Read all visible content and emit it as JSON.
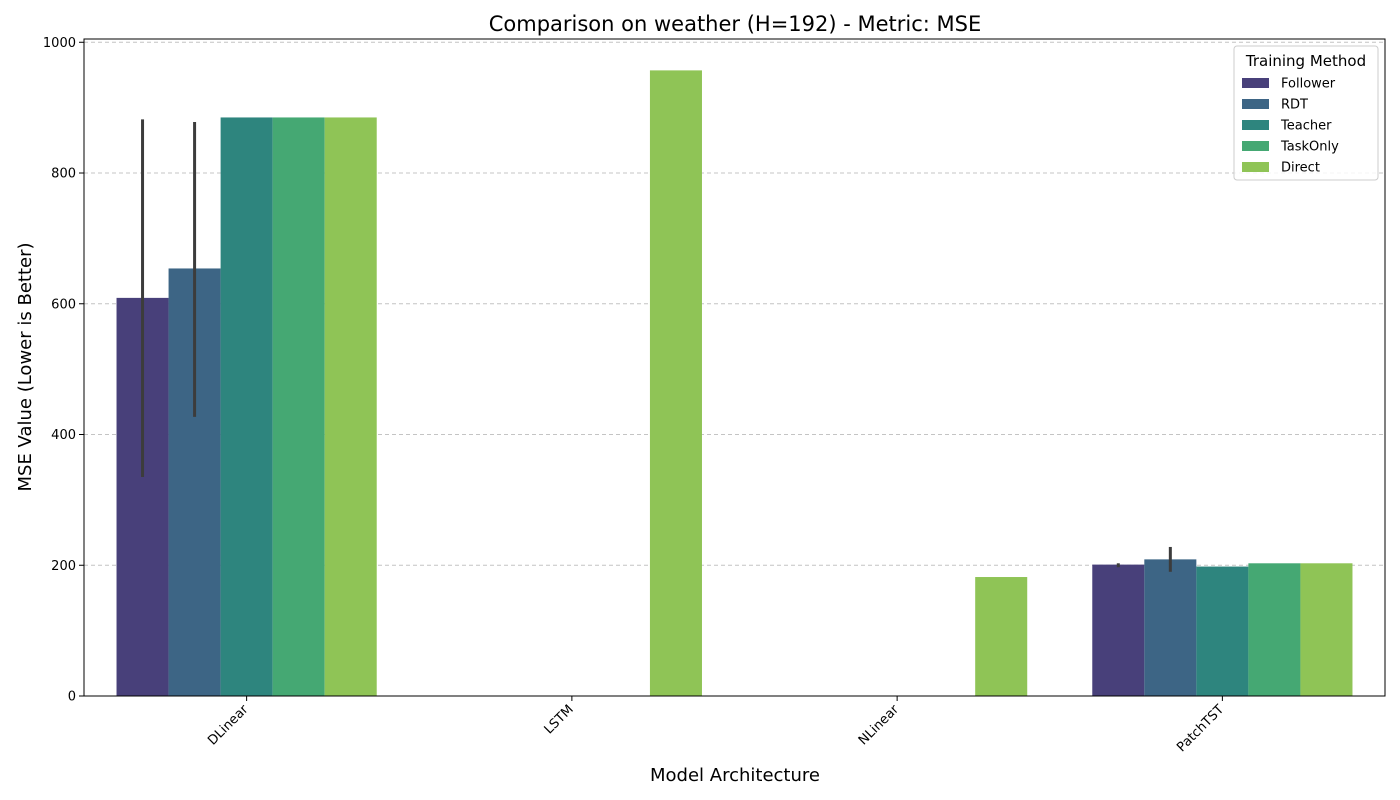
{
  "chart_data": {
    "type": "bar",
    "title": "Comparison on weather (H=192) - Metric: MSE",
    "xlabel": "Model Architecture",
    "ylabel": "MSE Value (Lower is Better)",
    "ylim": [
      0,
      1005
    ],
    "yticks": [
      0,
      200,
      400,
      600,
      800,
      1000
    ],
    "grid": "y, dashed",
    "categories": [
      "DLinear",
      "LSTM",
      "NLinear",
      "PatchTST"
    ],
    "series": [
      {
        "name": "Follower",
        "color": "#48407a",
        "values": [
          609,
          null,
          null,
          201
        ],
        "error": [
          [
            335,
            882
          ],
          null,
          null,
          [
            197,
            203
          ]
        ]
      },
      {
        "name": "RDT",
        "color": "#3d6585",
        "values": [
          654,
          null,
          null,
          209
        ],
        "error": [
          [
            427,
            878
          ],
          null,
          null,
          [
            190,
            228
          ]
        ]
      },
      {
        "name": "Teacher",
        "color": "#2e857e",
        "values": [
          885,
          null,
          null,
          198
        ],
        "error": [
          null,
          null,
          null,
          null
        ]
      },
      {
        "name": "TaskOnly",
        "color": "#45a873",
        "values": [
          885,
          null,
          null,
          203
        ],
        "error": [
          null,
          null,
          null,
          null
        ]
      },
      {
        "name": "Direct",
        "color": "#8fc456",
        "values": [
          885,
          957,
          182,
          203
        ],
        "error": [
          null,
          null,
          null,
          null
        ]
      }
    ],
    "legend": {
      "title": "Training Method",
      "placement": "top-right"
    }
  }
}
